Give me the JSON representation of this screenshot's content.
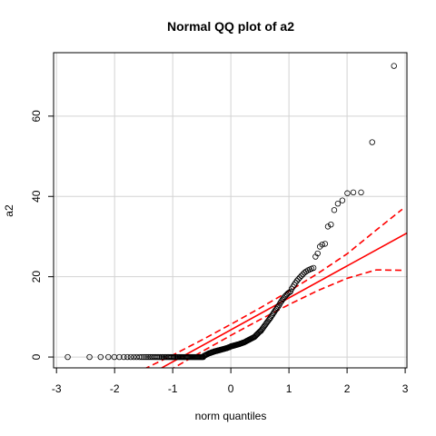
{
  "chart_data": {
    "type": "scatter",
    "title": "Normal QQ plot of  a2",
    "xlabel": "norm quantiles",
    "ylabel": "a2",
    "xlim": [
      -3.05,
      3.03
    ],
    "ylim": [
      -2.7,
      75.8
    ],
    "xticks": [
      -3,
      -2,
      -1,
      0,
      1,
      2,
      3
    ],
    "yticks": [
      0,
      20,
      40,
      60
    ],
    "grid": true,
    "color": "#000000",
    "line_color": "#ff0000",
    "x": [
      -2.807,
      -2.432,
      -2.241,
      -2.108,
      -2.005,
      -1.919,
      -1.841,
      -1.779,
      -1.722,
      -1.67,
      -1.621,
      -1.572,
      -1.532,
      -1.494,
      -1.457,
      -1.422,
      -1.388,
      -1.356,
      -1.325,
      -1.295,
      -1.266,
      -1.239,
      -1.213,
      -1.187,
      -1.162,
      -1.138,
      -1.114,
      -1.091,
      -1.069,
      -1.047,
      -1.026,
      -1.005,
      -0.985,
      -0.965,
      -0.945,
      -0.925,
      -0.907,
      -0.888,
      -0.87,
      -0.851,
      -0.833,
      -0.816,
      -0.798,
      -0.781,
      -0.764,
      -0.747,
      -0.731,
      -0.715,
      -0.699,
      -0.683,
      -0.667,
      -0.652,
      -0.636,
      -0.621,
      -0.606,
      -0.591,
      -0.576,
      -0.561,
      -0.546,
      -0.531,
      -0.517,
      -0.503,
      -0.489,
      -0.475,
      -0.461,
      -0.447,
      -0.433,
      -0.42,
      -0.406,
      -0.392,
      -0.379,
      -0.366,
      -0.352,
      -0.339,
      -0.326,
      -0.312,
      -0.299,
      -0.286,
      -0.273,
      -0.26,
      -0.247,
      -0.234,
      -0.221,
      -0.209,
      -0.196,
      -0.183,
      -0.17,
      -0.158,
      -0.145,
      -0.132,
      -0.119,
      -0.107,
      -0.094,
      -0.082,
      -0.069,
      -0.056,
      -0.044,
      -0.031,
      -0.019,
      -0.006,
      0.006,
      0.019,
      0.031,
      0.044,
      0.056,
      0.069,
      0.082,
      0.094,
      0.107,
      0.119,
      0.132,
      0.145,
      0.158,
      0.17,
      0.183,
      0.196,
      0.209,
      0.221,
      0.234,
      0.247,
      0.26,
      0.273,
      0.286,
      0.299,
      0.312,
      0.326,
      0.339,
      0.352,
      0.366,
      0.379,
      0.392,
      0.406,
      0.42,
      0.433,
      0.447,
      0.461,
      0.475,
      0.489,
      0.503,
      0.517,
      0.531,
      0.546,
      0.561,
      0.576,
      0.591,
      0.606,
      0.621,
      0.636,
      0.652,
      0.667,
      0.683,
      0.699,
      0.715,
      0.731,
      0.747,
      0.764,
      0.781,
      0.798,
      0.816,
      0.833,
      0.851,
      0.87,
      0.888,
      0.907,
      0.925,
      0.945,
      0.965,
      0.985,
      1.005,
      1.026,
      1.047,
      1.069,
      1.091,
      1.114,
      1.138,
      1.162,
      1.187,
      1.213,
      1.239,
      1.266,
      1.295,
      1.325,
      1.356,
      1.388,
      1.422,
      1.457,
      1.494,
      1.532,
      1.572,
      1.621,
      1.67,
      1.722,
      1.779,
      1.841,
      1.919,
      2.005,
      2.108,
      2.241,
      2.432,
      2.807
    ],
    "values": [
      0,
      0,
      0,
      0,
      0,
      0,
      0,
      0,
      0,
      0,
      0,
      0,
      0,
      0,
      0,
      0,
      0,
      0,
      0,
      0,
      0,
      0,
      0,
      0,
      0,
      0,
      0,
      0,
      0,
      0,
      0,
      0,
      0,
      0,
      0,
      0,
      0,
      0,
      0,
      0,
      0,
      0,
      0,
      0,
      0,
      0,
      0,
      0,
      0,
      0,
      0,
      0,
      0,
      0,
      0,
      0,
      0,
      0,
      0,
      0,
      0,
      0,
      0,
      0,
      0.3,
      0.4,
      0.5,
      0.6,
      0.7,
      0.8,
      0.9,
      1.0,
      1.0,
      1.1,
      1.2,
      1.2,
      1.3,
      1.4,
      1.4,
      1.5,
      1.5,
      1.6,
      1.6,
      1.7,
      1.7,
      1.8,
      1.8,
      1.9,
      1.9,
      2.0,
      2.0,
      2.1,
      2.1,
      2.2,
      2.2,
      2.3,
      2.4,
      2.4,
      2.5,
      2.6,
      2.7,
      2.7,
      2.8,
      2.8,
      2.9,
      2.9,
      3.0,
      3.0,
      3.1,
      3.1,
      3.2,
      3.2,
      3.3,
      3.4,
      3.4,
      3.5,
      3.6,
      3.6,
      3.7,
      3.8,
      3.9,
      4.0,
      4.1,
      4.2,
      4.3,
      4.4,
      4.5,
      4.6,
      4.7,
      4.8,
      4.9,
      5.0,
      5.2,
      5.4,
      5.6,
      5.8,
      6.0,
      6.2,
      6.4,
      6.5,
      6.8,
      7.1,
      7.4,
      7.7,
      8.0,
      8.3,
      8.6,
      8.9,
      9.2,
      9.5,
      9.8,
      10.2,
      10.5,
      10.9,
      11.2,
      11.6,
      11.9,
      12.3,
      12.6,
      13.0,
      13.5,
      13.9,
      14.3,
      14.6,
      15.0,
      15.3,
      15.6,
      15.9,
      16.1,
      16.3,
      17.0,
      17.5,
      18.0,
      18.5,
      19.0,
      19.4,
      19.8,
      20.2,
      20.6,
      21.0,
      21.3,
      21.6,
      21.8,
      22.0,
      22.2,
      25.0,
      25.8,
      27.5,
      28.0,
      28.2,
      32.5,
      33.0,
      36.6,
      38.2,
      39.0,
      40.8,
      41.0,
      41.0,
      53.5,
      72.5
    ],
    "reference_line": {
      "intercept": 6.77,
      "slope": 7.96
    },
    "envelope": {
      "x": [
        -1.5,
        -1,
        -0.5,
        0,
        0.5,
        1,
        1.5,
        2,
        2.5,
        2.95
      ],
      "upper": [
        -3.04,
        0.48,
        4.24,
        8.15,
        12.2,
        16.4,
        20.84,
        25.7,
        31.6,
        36.8
      ],
      "lower": [
        -7.3,
        -2.86,
        1.34,
        5.39,
        9.3,
        13.06,
        16.58,
        19.6,
        21.7,
        21.6
      ]
    }
  }
}
